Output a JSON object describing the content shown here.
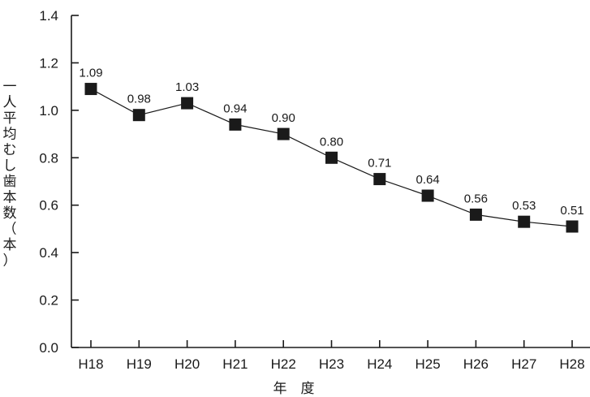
{
  "chart_data": {
    "type": "line",
    "categories": [
      "H18",
      "H19",
      "H20",
      "H21",
      "H22",
      "H23",
      "H24",
      "H25",
      "H26",
      "H27",
      "H28"
    ],
    "series": [
      {
        "values": [
          1.09,
          0.98,
          1.03,
          0.94,
          0.9,
          0.8,
          0.71,
          0.64,
          0.56,
          0.53,
          0.51
        ]
      }
    ],
    "data_labels": [
      "1.09",
      "0.98",
      "1.03",
      "0.94",
      "0.90",
      "0.80",
      "0.71",
      "0.64",
      "0.56",
      "0.53",
      "0.51"
    ],
    "y_ticks": [
      "0.0",
      "0.2",
      "0.4",
      "0.6",
      "0.8",
      "1.0",
      "1.2",
      "1.4"
    ],
    "ylim": [
      0,
      1.4
    ],
    "xlabel": "年　度",
    "ylabel": "一人平均むし歯本数（本）",
    "grid": false,
    "legend": "none",
    "marker": "square",
    "colors": {
      "line": "#1a1a1a",
      "marker": "#1a1a1a",
      "axis": "#1a1a1a"
    }
  }
}
